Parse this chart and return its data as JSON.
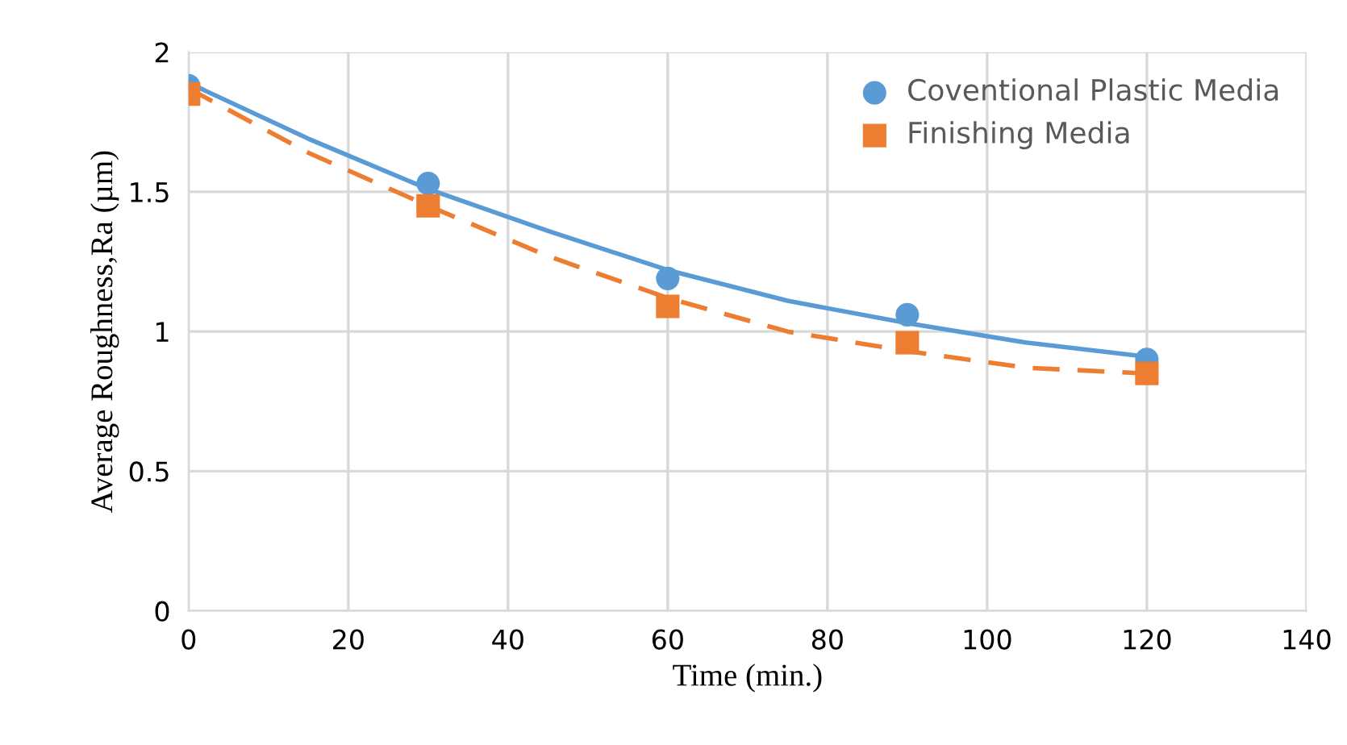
{
  "chart_data": {
    "type": "scatter",
    "xlabel": "Time (min.)",
    "ylabel": "Average Roughness,Ra (µm)",
    "xlim": [
      0,
      140
    ],
    "xticks": [
      0,
      20,
      40,
      60,
      80,
      100,
      120,
      140
    ],
    "ylim": [
      0,
      2
    ],
    "yticks": [
      0,
      {
        "value": 0.5,
        "label": "0.5"
      },
      1,
      {
        "value": 1.5,
        "label": "1.5"
      },
      2
    ],
    "grid": true,
    "legend": "top right",
    "series": [
      {
        "name": "Coventional Plastic Media",
        "color": "#5b9bd5",
        "marker": "circle",
        "x": [
          0,
          30,
          60,
          90,
          120
        ],
        "values": [
          1.88,
          1.53,
          1.19,
          1.06,
          0.9
        ]
      },
      {
        "name": "Finishing Media",
        "color": "#ed7d31",
        "marker": "square",
        "x": [
          0,
          30,
          60,
          90,
          120
        ],
        "values": [
          1.85,
          1.45,
          1.09,
          0.96,
          0.85
        ]
      },
      {
        "type": "line",
        "color": "#5b9bd5",
        "line_style": "solid",
        "x": [
          0,
          15,
          30,
          45,
          60,
          75,
          90,
          105,
          120
        ],
        "values": [
          1.89,
          1.69,
          1.51,
          1.36,
          1.22,
          1.11,
          1.03,
          0.96,
          0.91
        ]
      },
      {
        "type": "line",
        "color": "#ed7d31",
        "line_style": "dashed",
        "x": [
          0,
          15,
          30,
          45,
          60,
          75,
          90,
          105,
          120
        ],
        "values": [
          1.87,
          1.64,
          1.45,
          1.27,
          1.12,
          1.0,
          0.93,
          0.87,
          0.85
        ]
      }
    ]
  }
}
